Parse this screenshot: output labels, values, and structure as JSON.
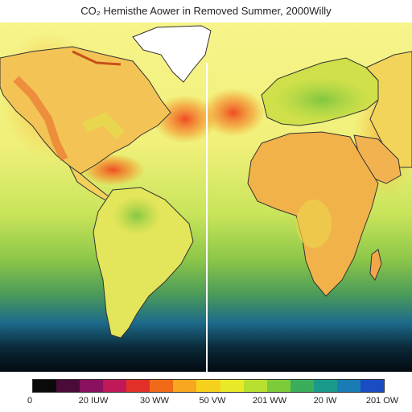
{
  "map": {
    "title": "CO₂ Hemisthe Aower in Removed Summer, 2000Willy",
    "colorbar": {
      "colors": [
        "#0a0a0a",
        "#4a0a3a",
        "#8a1060",
        "#c01858",
        "#e23028",
        "#f06a18",
        "#f7a820",
        "#f6d21e",
        "#e8ea28",
        "#b8e030",
        "#7ccc3a",
        "#3aae5a",
        "#1a9a8a",
        "#1a7cb4",
        "#1a4cc4"
      ],
      "tick_labels": [
        "0",
        "20 IUW",
        "30 WW",
        "50 VW",
        "201 WW",
        "20 IW",
        "201 OW"
      ]
    },
    "regions": [
      "greenland",
      "north-america",
      "central-america",
      "south-america",
      "europe",
      "africa",
      "arabia",
      "asia"
    ],
    "palette": {
      "ocean_yellow": "#eef27a",
      "ocean_green": "#a9d64a",
      "deep_blue": "#1f6a8a",
      "hot_orange": "#f28a2a",
      "land_orange": "#f0a64a",
      "ice_white": "#ffffff"
    }
  }
}
